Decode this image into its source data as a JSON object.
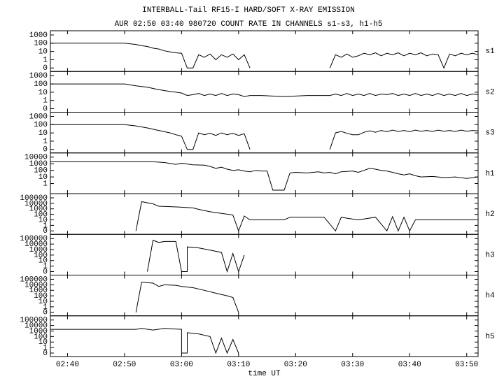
{
  "title": "INTERBALL-Tail RF15-I HARD/SOFT X-RAY EMISSION",
  "subtitle": "AUR 02:50 03:40 980720  COUNT RATE IN CHANNELS s1-s3, h1-h5",
  "chart_data": [
    {
      "type": "line",
      "label": "s1",
      "color": "#000000",
      "scale": "symlog",
      "ylim": [
        0,
        1000
      ],
      "yticks": [
        0,
        1,
        10,
        100,
        1000
      ],
      "x": [
        "02:37",
        "02:50",
        "02:52",
        "02:53",
        "02:54",
        "02:55",
        "02:56",
        "02:57",
        "02:58",
        "02:59",
        "03:00",
        "03:01",
        "03:02",
        "03:03",
        "03:04",
        "03:05",
        "03:06",
        "03:07",
        "03:08",
        "03:09",
        "03:10",
        "03:11",
        "03:12",
        "03:13",
        "03:26",
        "03:27",
        "03:28",
        "03:29",
        "03:30",
        "03:31",
        "03:32",
        "03:33",
        "03:34",
        "03:35",
        "03:36",
        "03:37",
        "03:38",
        "03:39",
        "03:40",
        "03:41",
        "03:42",
        "03:43",
        "03:44",
        "03:45",
        "03:46",
        "03:47",
        "03:48",
        "03:49",
        "03:50",
        "03:51",
        "03:52"
      ],
      "values": [
        100,
        100,
        70,
        50,
        40,
        25,
        20,
        12,
        9,
        7,
        6,
        0,
        0,
        4,
        2,
        5,
        1,
        4,
        2,
        5,
        1,
        4,
        0,
        null,
        0,
        4,
        2,
        5,
        2,
        3,
        6,
        4,
        7,
        3,
        6,
        4,
        7,
        3,
        6,
        4,
        7,
        3,
        5,
        4,
        0,
        5,
        3,
        6,
        4,
        6,
        4
      ]
    },
    {
      "type": "line",
      "label": "s2",
      "color": "#000000",
      "scale": "symlog",
      "ylim": [
        0,
        1000
      ],
      "yticks": [
        0,
        1,
        10,
        100,
        1000
      ],
      "x": [
        "02:37",
        "02:50",
        "02:52",
        "02:54",
        "02:56",
        "02:58",
        "02:59",
        "03:00",
        "03:01",
        "03:02",
        "03:03",
        "03:04",
        "03:05",
        "03:06",
        "03:07",
        "03:08",
        "03:09",
        "03:10",
        "03:11",
        "03:12",
        "03:14",
        "03:18",
        "03:22",
        "03:26",
        "03:27",
        "03:28",
        "03:29",
        "03:30",
        "03:31",
        "03:32",
        "03:33",
        "03:34",
        "03:35",
        "03:36",
        "03:37",
        "03:38",
        "03:39",
        "03:40",
        "03:41",
        "03:42",
        "03:43",
        "03:44",
        "03:45",
        "03:46",
        "03:47",
        "03:48",
        "03:49",
        "03:50",
        "03:51",
        "03:52"
      ],
      "values": [
        100,
        100,
        60,
        40,
        20,
        12,
        10,
        8,
        4,
        5,
        7,
        4,
        6,
        4,
        7,
        4,
        6,
        5,
        3,
        4,
        4,
        3,
        4,
        4,
        6,
        4,
        7,
        4,
        6,
        4,
        7,
        4,
        6,
        5,
        7,
        4,
        6,
        4,
        7,
        4,
        6,
        4,
        7,
        4,
        6,
        4,
        7,
        4,
        6,
        5
      ]
    },
    {
      "type": "line",
      "label": "s3",
      "color": "#000000",
      "scale": "symlog",
      "ylim": [
        0,
        1000
      ],
      "yticks": [
        0,
        1,
        10,
        100,
        1000
      ],
      "x": [
        "02:37",
        "02:50",
        "02:52",
        "02:54",
        "02:56",
        "02:58",
        "02:59",
        "03:00",
        "03:01",
        "03:02",
        "03:03",
        "03:04",
        "03:05",
        "03:06",
        "03:07",
        "03:08",
        "03:09",
        "03:10",
        "03:11",
        "03:12",
        "03:13",
        "03:26",
        "03:27",
        "03:28",
        "03:29",
        "03:30",
        "03:31",
        "03:32",
        "03:33",
        "03:34",
        "03:35",
        "03:36",
        "03:37",
        "03:38",
        "03:39",
        "03:40",
        "03:41",
        "03:42",
        "03:43",
        "03:44",
        "03:45",
        "03:46",
        "03:47",
        "03:48",
        "03:49",
        "03:50",
        "03:51",
        "03:52"
      ],
      "values": [
        100,
        100,
        70,
        40,
        20,
        10,
        6,
        4,
        0,
        0,
        10,
        6,
        9,
        5,
        10,
        6,
        9,
        5,
        8,
        0,
        null,
        0,
        10,
        15,
        9,
        6,
        6,
        12,
        18,
        12,
        20,
        14,
        22,
        15,
        20,
        14,
        22,
        16,
        20,
        15,
        22,
        16,
        20,
        15,
        22,
        16,
        20,
        18
      ]
    },
    {
      "type": "line",
      "label": "h1",
      "color": "#000000",
      "scale": "symlog",
      "ylim": [
        0,
        10000
      ],
      "yticks": [
        1,
        10,
        100,
        1000,
        10000
      ],
      "x": [
        "02:37",
        "02:55",
        "02:57",
        "02:59",
        "03:00",
        "03:01",
        "03:02",
        "03:04",
        "03:05",
        "03:06",
        "03:07",
        "03:08",
        "03:09",
        "03:10",
        "03:11",
        "03:12",
        "03:13",
        "03:14",
        "03:15",
        "03:16",
        "03:18",
        "03:19",
        "03:20",
        "03:22",
        "03:24",
        "03:25",
        "03:26",
        "03:27",
        "03:28",
        "03:30",
        "03:31",
        "03:32",
        "03:33",
        "03:34",
        "03:35",
        "03:36",
        "03:37",
        "03:38",
        "03:39",
        "03:40",
        "03:41",
        "03:42",
        "03:44",
        "03:46",
        "03:48",
        "03:50",
        "03:52"
      ],
      "values": [
        2000,
        2000,
        1500,
        800,
        1200,
        900,
        700,
        600,
        400,
        200,
        300,
        150,
        100,
        120,
        80,
        60,
        100,
        80,
        80,
        0,
        0,
        40,
        50,
        40,
        60,
        40,
        50,
        30,
        60,
        80,
        50,
        100,
        200,
        150,
        100,
        80,
        50,
        30,
        20,
        30,
        15,
        10,
        12,
        8,
        10,
        6,
        10
      ]
    },
    {
      "type": "line",
      "label": "h2",
      "color": "#000000",
      "scale": "symlog",
      "ylim": [
        0,
        100000
      ],
      "yticks": [
        0,
        1,
        10,
        100,
        1000,
        10000,
        100000
      ],
      "x": [
        "02:52",
        "02:53",
        "02:55",
        "02:56",
        "02:58",
        "03:00",
        "03:02",
        "03:03",
        "03:05",
        "03:07",
        "03:09",
        "03:10",
        "03:11",
        "03:12",
        "03:18",
        "03:19",
        "03:25",
        "03:27",
        "03:28",
        "03:29",
        "03:31",
        "03:34",
        "03:36",
        "03:37",
        "03:38",
        "03:39",
        "03:40",
        "03:41",
        "03:52"
      ],
      "values": [
        0,
        20000,
        8000,
        3000,
        2500,
        2000,
        1500,
        800,
        300,
        150,
        80,
        0,
        50,
        10,
        10,
        30,
        30,
        0,
        30,
        20,
        10,
        30,
        0,
        40,
        0,
        30,
        0,
        10,
        10
      ]
    },
    {
      "type": "line",
      "label": "h3",
      "color": "#000000",
      "scale": "symlog",
      "ylim": [
        0,
        100000
      ],
      "yticks": [
        0,
        1,
        10,
        100,
        1000,
        10000,
        100000
      ],
      "x": [
        "02:54",
        "02:55",
        "02:56",
        "02:57",
        "02:59",
        "03:00",
        "03:01",
        "03:01",
        "03:03",
        "03:05",
        "03:07",
        "03:08",
        "03:09",
        "03:10",
        "03:11"
      ],
      "values": [
        0,
        50000,
        20000,
        30000,
        30000,
        0,
        0,
        3000,
        2000,
        800,
        300,
        0,
        200,
        0,
        100
      ]
    },
    {
      "type": "line",
      "label": "h4",
      "color": "#000000",
      "scale": "symlog",
      "ylim": [
        0,
        100000
      ],
      "yticks": [
        0,
        1,
        10,
        100,
        1000,
        10000,
        100000
      ],
      "x": [
        "02:52",
        "02:53",
        "02:55",
        "02:56",
        "02:57",
        "02:59",
        "03:00",
        "03:02",
        "03:04",
        "03:06",
        "03:08",
        "03:09",
        "03:10"
      ],
      "values": [
        0,
        30000,
        20000,
        5000,
        10000,
        8000,
        5000,
        3000,
        1000,
        300,
        100,
        50,
        0
      ]
    },
    {
      "type": "line",
      "label": "h5",
      "color": "#000000",
      "scale": "symlog",
      "ylim": [
        0,
        100000
      ],
      "yticks": [
        0,
        1,
        10,
        100,
        1000,
        10000,
        100000
      ],
      "x": [
        "02:37",
        "02:52",
        "02:53",
        "02:55",
        "02:57",
        "03:00",
        "03:00",
        "03:01",
        "03:01",
        "03:03",
        "03:05",
        "03:06",
        "03:07",
        "03:08",
        "03:09",
        "03:10"
      ],
      "values": [
        2000,
        2000,
        3000,
        1500,
        3000,
        2000,
        0,
        0,
        500,
        300,
        100,
        0,
        50,
        0,
        30,
        0
      ],
      "xlabel": "time UT",
      "xlim": [
        "02:37",
        "03:52"
      ],
      "xticks": [
        "02:40",
        "02:50",
        "03:00",
        "03:10",
        "03:20",
        "03:30",
        "03:40",
        "03:50"
      ]
    }
  ]
}
